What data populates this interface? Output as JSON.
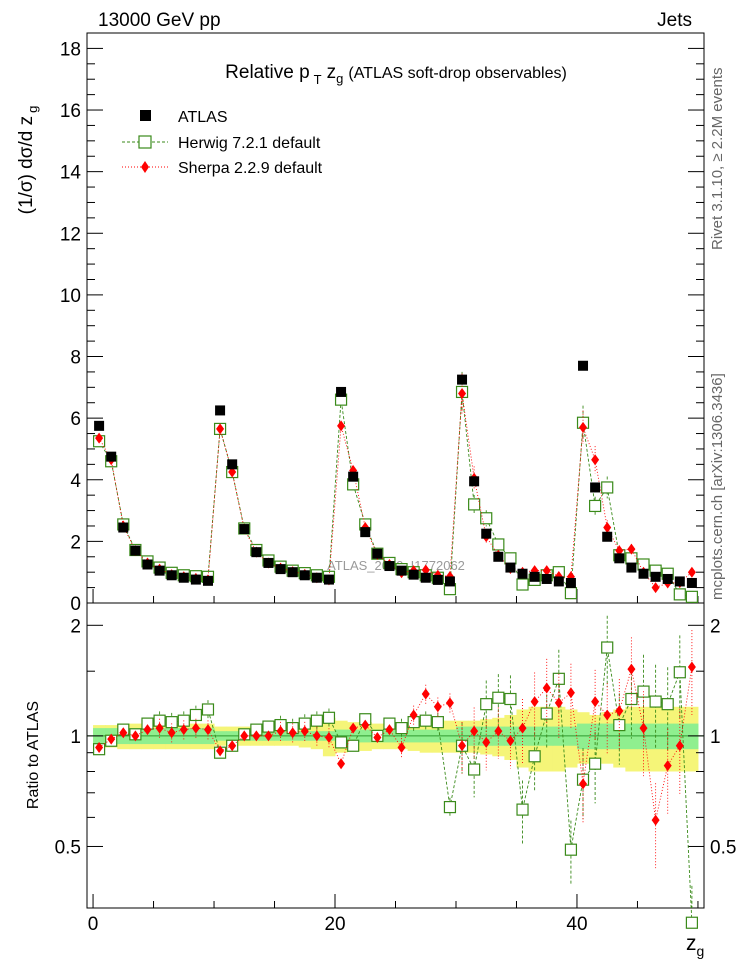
{
  "header": {
    "left": "13000 GeV pp",
    "right": "Jets"
  },
  "side_labels": {
    "rivet": "Rivet 3.1.10, ≥ 2.2M events",
    "mcplots": "mcplots.cern.ch [arXiv:1306.3436]"
  },
  "watermark": "ATLAS_2019_I1772062",
  "chart_data": {
    "type": "scatter",
    "title_main": "Relative p",
    "title_sub": "T",
    "title_var": "z",
    "title_var_sub": "g",
    "title_paren": "(ATLAS soft-drop observables)",
    "ylabel_main": "(1/σ) dσ/d z",
    "ylabel_sub": "g",
    "xlabel_main": "z",
    "xlabel_sub": "g",
    "ratio_ylabel": "Ratio to ATLAS",
    "xlim": [
      -0.5,
      50.5
    ],
    "ylim": [
      0,
      18.5
    ],
    "ratio_ylim": [
      0.34,
      2.3
    ],
    "x_ticks": [
      0,
      20,
      40
    ],
    "y_ticks": [
      0,
      2,
      4,
      6,
      8,
      10,
      12,
      14,
      16,
      18
    ],
    "ratio_ticks": [
      0.5,
      1,
      2
    ],
    "legend": {
      "position": "top-left",
      "atlas": "ATLAS",
      "herwig": "Herwig 7.2.1 default",
      "sherpa": "Sherpa 2.2.9 default"
    },
    "colors": {
      "atlas": "#000000",
      "herwig": "#3a8a1a",
      "sherpa": "#ff0000",
      "band_inner": "#8fef8f",
      "band_outer": "#f5f578"
    },
    "x": [
      0.5,
      1.5,
      2.5,
      3.5,
      4.5,
      5.5,
      6.5,
      7.5,
      8.5,
      9.5,
      10.5,
      11.5,
      12.5,
      13.5,
      14.5,
      15.5,
      16.5,
      17.5,
      18.5,
      19.5,
      20.5,
      21.5,
      22.5,
      23.5,
      24.5,
      25.5,
      26.5,
      27.5,
      28.5,
      29.5,
      30.5,
      31.5,
      32.5,
      33.5,
      34.5,
      35.5,
      36.5,
      37.5,
      38.5,
      39.5,
      40.5,
      41.5,
      42.5,
      43.5,
      44.5,
      45.5,
      46.5,
      47.5,
      48.5,
      49.5
    ],
    "atlas": [
      5.75,
      4.75,
      2.45,
      1.7,
      1.25,
      1.05,
      0.9,
      0.82,
      0.76,
      0.72,
      6.25,
      4.5,
      2.4,
      1.65,
      1.3,
      1.1,
      1.0,
      0.9,
      0.82,
      0.76,
      6.85,
      4.1,
      2.3,
      1.6,
      1.2,
      1.05,
      0.92,
      0.82,
      0.75,
      0.7,
      7.25,
      3.95,
      2.25,
      1.5,
      1.15,
      0.95,
      0.85,
      0.78,
      0.7,
      0.65,
      7.7,
      3.75,
      2.15,
      1.45,
      1.15,
      0.95,
      0.85,
      0.78,
      0.7,
      0.65
    ],
    "herwig": [
      5.25,
      4.6,
      2.55,
      1.72,
      1.35,
      1.15,
      0.98,
      0.9,
      0.87,
      0.85,
      5.65,
      4.25,
      2.42,
      1.72,
      1.38,
      1.18,
      1.05,
      0.97,
      0.9,
      0.85,
      6.6,
      3.85,
      2.55,
      1.6,
      1.3,
      1.1,
      1.0,
      0.9,
      0.82,
      0.45,
      6.85,
      3.2,
      2.75,
      1.9,
      1.45,
      0.6,
      0.75,
      0.9,
      1.0,
      0.32,
      5.85,
      3.15,
      3.75,
      1.55,
      1.45,
      1.25,
      1.05,
      0.95,
      0.28,
      0.2
    ],
    "sherpa": [
      5.35,
      4.65,
      2.5,
      1.7,
      1.3,
      1.1,
      0.92,
      0.85,
      0.8,
      0.75,
      5.65,
      4.25,
      2.4,
      1.65,
      1.3,
      1.13,
      1.02,
      0.93,
      0.82,
      0.75,
      5.75,
      4.3,
      2.45,
      1.58,
      1.25,
      0.98,
      1.05,
      1.07,
      0.9,
      0.86,
      6.8,
      4.05,
      2.15,
      1.55,
      1.12,
      1.0,
      1.05,
      1.05,
      0.86,
      0.85,
      5.7,
      4.65,
      2.45,
      1.7,
      1.75,
      1.0,
      0.5,
      0.65,
      0.66,
      1.0
    ],
    "herwig_ratio": [
      0.92,
      0.97,
      1.04,
      1.01,
      1.08,
      1.1,
      1.09,
      1.1,
      1.14,
      1.18,
      0.9,
      0.94,
      1.01,
      1.04,
      1.06,
      1.07,
      1.05,
      1.08,
      1.1,
      1.12,
      0.96,
      0.94,
      1.11,
      1.0,
      1.08,
      1.05,
      1.09,
      1.1,
      1.09,
      0.64,
      0.94,
      0.81,
      1.22,
      1.27,
      1.26,
      0.63,
      0.88,
      1.15,
      1.43,
      0.49,
      0.76,
      0.84,
      1.74,
      1.07,
      1.26,
      1.32,
      1.24,
      1.22,
      1.49,
      0.31
    ],
    "sherpa_ratio": [
      0.93,
      0.98,
      1.02,
      1.0,
      1.04,
      1.05,
      1.02,
      1.04,
      1.05,
      1.04,
      0.91,
      0.94,
      1.0,
      1.0,
      1.0,
      1.03,
      1.02,
      1.03,
      1.0,
      0.99,
      0.84,
      1.05,
      1.07,
      0.99,
      1.04,
      0.93,
      1.14,
      1.3,
      1.2,
      1.23,
      0.94,
      1.03,
      0.96,
      1.03,
      0.97,
      1.05,
      1.24,
      1.35,
      1.23,
      1.31,
      0.74,
      1.24,
      1.14,
      1.17,
      1.52,
      1.05,
      0.59,
      0.83,
      0.94,
      1.54
    ],
    "band_inner_halfwidth": [
      0.05,
      0.05,
      0.05,
      0.05,
      0.05,
      0.05,
      0.05,
      0.05,
      0.05,
      0.05,
      0.03,
      0.03,
      0.03,
      0.03,
      0.03,
      0.03,
      0.03,
      0.03,
      0.03,
      0.03,
      0.04,
      0.04,
      0.04,
      0.04,
      0.04,
      0.04,
      0.04,
      0.04,
      0.04,
      0.04,
      0.06,
      0.06,
      0.06,
      0.06,
      0.06,
      0.06,
      0.06,
      0.06,
      0.06,
      0.06,
      0.08,
      0.08,
      0.08,
      0.08,
      0.08,
      0.08,
      0.08,
      0.08,
      0.08,
      0.08
    ],
    "band_outer_halfwidth": [
      0.07,
      0.07,
      0.08,
      0.08,
      0.08,
      0.08,
      0.08,
      0.08,
      0.08,
      0.08,
      0.06,
      0.06,
      0.06,
      0.06,
      0.06,
      0.06,
      0.06,
      0.07,
      0.08,
      0.12,
      0.1,
      0.09,
      0.09,
      0.08,
      0.08,
      0.08,
      0.09,
      0.1,
      0.1,
      0.1,
      0.1,
      0.1,
      0.11,
      0.12,
      0.14,
      0.18,
      0.2,
      0.2,
      0.2,
      0.18,
      0.16,
      0.14,
      0.16,
      0.18,
      0.2,
      0.2,
      0.2,
      0.2,
      0.2,
      0.2
    ]
  }
}
